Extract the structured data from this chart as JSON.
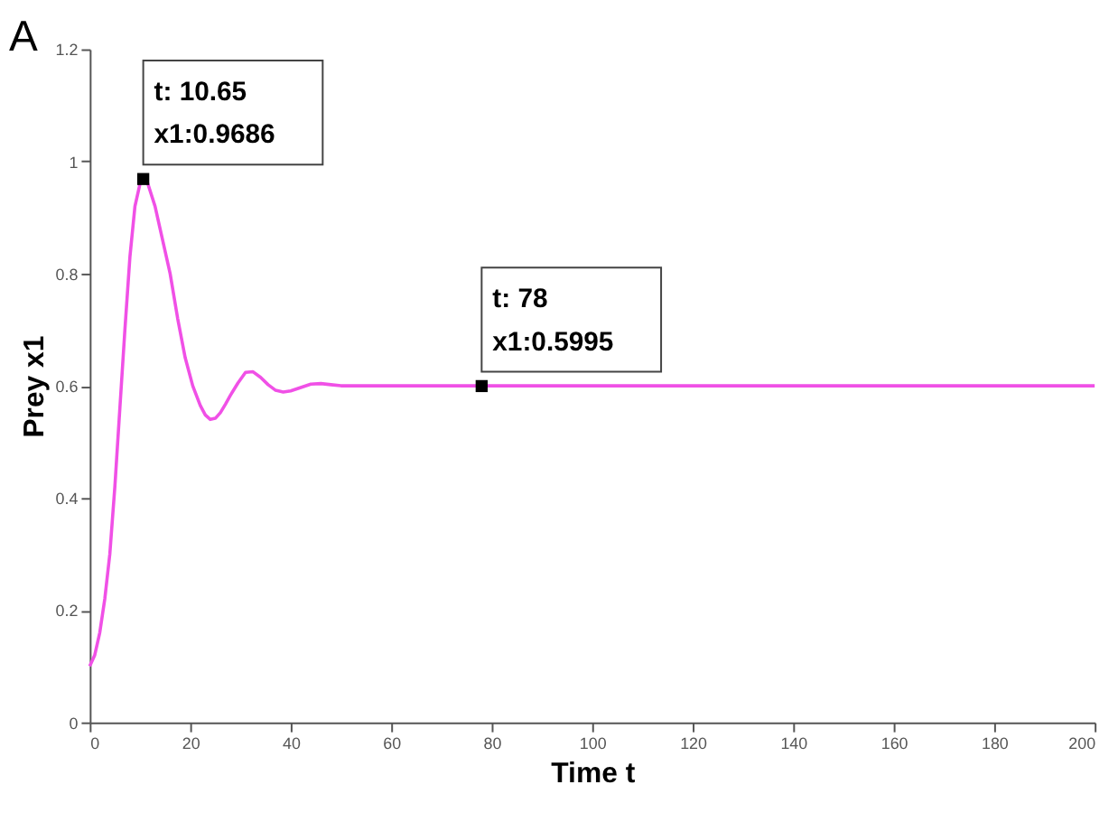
{
  "chart_data": {
    "type": "line",
    "title": "A",
    "xlabel": "Time t",
    "ylabel": "Prey x1",
    "x": [
      0,
      1,
      2,
      3,
      4,
      5,
      6,
      7,
      8,
      9,
      10,
      10.65,
      11.5,
      13,
      14.5,
      16,
      17.5,
      19,
      20.5,
      22,
      23,
      24,
      25,
      26,
      27,
      28,
      29.5,
      31,
      32.5,
      34,
      35.5,
      37,
      38.5,
      40,
      42,
      44,
      46,
      48,
      50,
      55,
      60,
      70,
      80,
      90,
      100,
      120,
      140,
      160,
      180,
      200
    ],
    "series": [
      {
        "color": "#f050e6",
        "values": [
          0.1,
          0.12,
          0.16,
          0.22,
          0.3,
          0.42,
          0.56,
          0.7,
          0.83,
          0.92,
          0.96,
          0.9686,
          0.962,
          0.92,
          0.86,
          0.8,
          0.72,
          0.65,
          0.6,
          0.565,
          0.548,
          0.54,
          0.542,
          0.552,
          0.567,
          0.583,
          0.605,
          0.624,
          0.625,
          0.615,
          0.602,
          0.592,
          0.589,
          0.591,
          0.597,
          0.603,
          0.604,
          0.602,
          0.6,
          0.6,
          0.6,
          0.6,
          0.6,
          0.6,
          0.6,
          0.6,
          0.6,
          0.6,
          0.6,
          0.6
        ]
      }
    ],
    "xlim": [
      0,
      200
    ],
    "xticks": [
      0,
      20,
      40,
      60,
      80,
      100,
      120,
      140,
      160,
      180,
      200
    ],
    "ylim": [
      0,
      1.2
    ],
    "yticks": [
      0,
      0.2,
      0.4,
      0.6,
      0.8,
      1,
      1.2
    ],
    "grid": false,
    "marker": "none",
    "line_style": "solid",
    "annotations": [
      {
        "text": "t: 10.65\nx1:0.9686",
        "x": 10.65,
        "y": 0.9686
      },
      {
        "text": "t: 78\nx1:0.5995",
        "x": 78,
        "y": 0.5995
      }
    ]
  }
}
